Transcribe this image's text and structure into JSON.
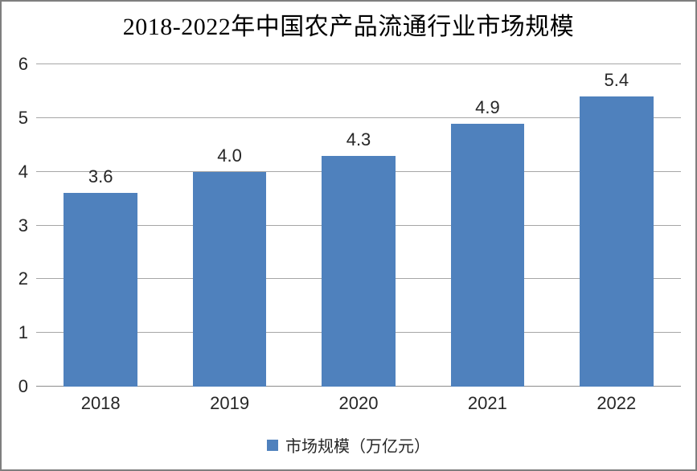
{
  "chart_data": {
    "type": "bar",
    "title": "2018-2022年中国农产品流通行业市场规模",
    "categories": [
      "2018",
      "2019",
      "2020",
      "2021",
      "2022"
    ],
    "values": [
      3.6,
      4.0,
      4.3,
      4.9,
      5.4
    ],
    "value_labels": [
      "3.6",
      "4.0",
      "4.3",
      "4.9",
      "5.4"
    ],
    "series_name": "市场规模（万亿元）",
    "xlabel": "",
    "ylabel": "",
    "ylim": [
      0,
      6
    ],
    "yticks": [
      0,
      1,
      2,
      3,
      4,
      5,
      6
    ],
    "grid": true,
    "legend": {
      "label": "市场规模（万亿元）",
      "position": "bottom",
      "marker": "square"
    },
    "colors": {
      "bar": "#4f81bd",
      "gridline": "#a6a6a6",
      "baseline": "#8c8c8c",
      "text": "#262626",
      "title": "#000000",
      "frame_border": "#7f7f7f",
      "background": "#ffffff"
    }
  }
}
